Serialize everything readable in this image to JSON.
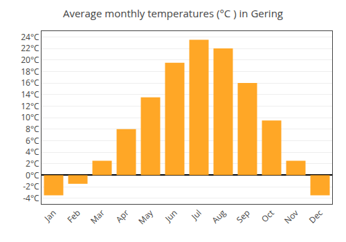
{
  "chart_data": {
    "type": "bar",
    "title": "Average monthly temperatures (°C ) in Gering",
    "categories": [
      "Jan",
      "Feb",
      "Mar",
      "Apr",
      "May",
      "Jun",
      "Jul",
      "Aug",
      "Sep",
      "Oct",
      "Nov",
      "Dec"
    ],
    "values": [
      -3.5,
      -1.5,
      2.5,
      8.0,
      13.5,
      19.5,
      23.5,
      22.0,
      16.0,
      9.5,
      2.5,
      -3.5
    ],
    "color": "#FFA726",
    "ylim": [
      -5,
      25
    ],
    "yticks": [
      {
        "value": -4,
        "label": "-4°C"
      },
      {
        "value": -2,
        "label": "-2°C"
      },
      {
        "value": 0,
        "label": "0°C"
      },
      {
        "value": 2,
        "label": "2°C"
      },
      {
        "value": 4,
        "label": "4°C"
      },
      {
        "value": 6,
        "label": "6°C"
      },
      {
        "value": 8,
        "label": "8°C"
      },
      {
        "value": 10,
        "label": "10°C"
      },
      {
        "value": 12,
        "label": "12°C"
      },
      {
        "value": 14,
        "label": "14°C"
      },
      {
        "value": 16,
        "label": "16°C"
      },
      {
        "value": 18,
        "label": "18°C"
      },
      {
        "value": 20,
        "label": "20°C"
      },
      {
        "value": 22,
        "label": "22°C"
      },
      {
        "value": 24,
        "label": "24°C"
      }
    ],
    "grid": true
  }
}
